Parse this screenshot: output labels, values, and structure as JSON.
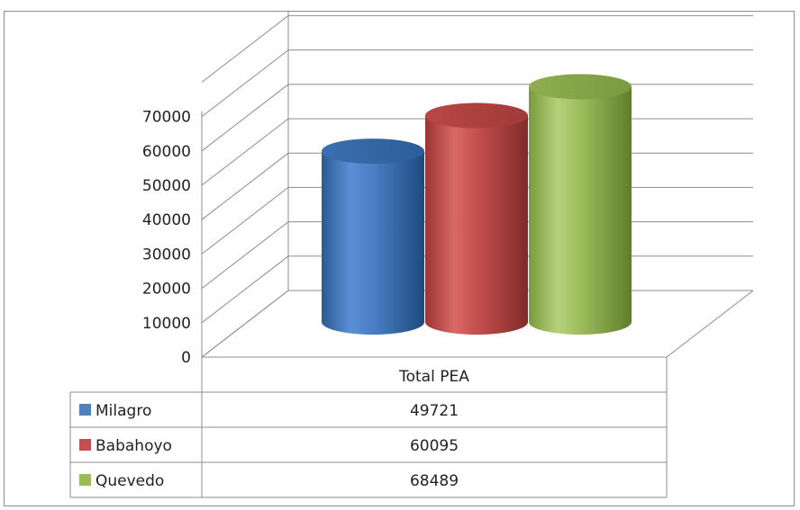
{
  "chart_data": {
    "type": "bar",
    "style": "3d-cylinder",
    "categories": [
      "Total PEA"
    ],
    "series": [
      {
        "name": "Milagro",
        "values": [
          49721
        ],
        "color": "#4f81bd"
      },
      {
        "name": "Babahoyo",
        "values": [
          60095
        ],
        "color": "#c0504d"
      },
      {
        "name": "Quevedo",
        "values": [
          68489
        ],
        "color": "#9bbb59"
      }
    ],
    "yticks": [
      "0",
      "10000",
      "20000",
      "30000",
      "40000",
      "50000",
      "60000",
      "70000"
    ],
    "ylim": [
      0,
      70000
    ],
    "grid": true,
    "data_table": true,
    "title": "",
    "xlabel": "",
    "ylabel": ""
  }
}
